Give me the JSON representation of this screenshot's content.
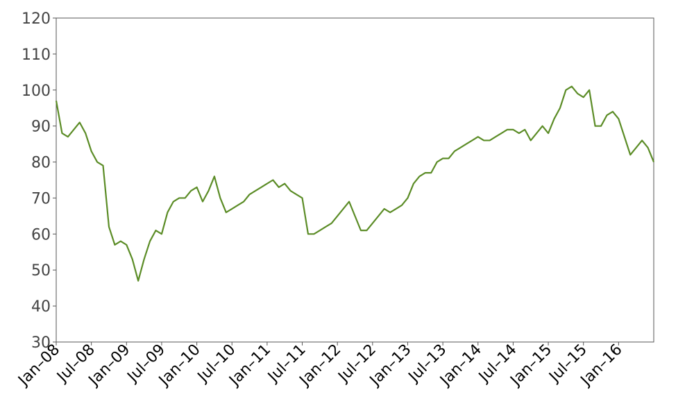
{
  "chart_data": {
    "type": "line",
    "x": [
      "2008-01",
      "2008-02",
      "2008-03",
      "2008-04",
      "2008-05",
      "2008-06",
      "2008-07",
      "2008-08",
      "2008-09",
      "2008-10",
      "2008-11",
      "2008-12",
      "2009-01",
      "2009-02",
      "2009-03",
      "2009-04",
      "2009-05",
      "2009-06",
      "2009-07",
      "2009-08",
      "2009-09",
      "2009-10",
      "2009-11",
      "2009-12",
      "2010-01",
      "2010-02",
      "2010-03",
      "2010-04",
      "2010-05",
      "2010-06",
      "2010-07",
      "2010-08",
      "2010-09",
      "2010-10",
      "2010-11",
      "2010-12",
      "2011-01",
      "2011-02",
      "2011-03",
      "2011-04",
      "2011-05",
      "2011-06",
      "2011-07",
      "2011-08",
      "2011-09",
      "2011-10",
      "2011-11",
      "2011-12",
      "2012-01",
      "2012-02",
      "2012-03",
      "2012-04",
      "2012-05",
      "2012-06",
      "2012-07",
      "2012-08",
      "2012-09",
      "2012-10",
      "2012-11",
      "2012-12",
      "2013-01",
      "2013-02",
      "2013-03",
      "2013-04",
      "2013-05",
      "2013-06",
      "2013-07",
      "2013-08",
      "2013-09",
      "2013-10",
      "2013-11",
      "2013-12",
      "2014-01",
      "2014-02",
      "2014-03",
      "2014-04",
      "2014-05",
      "2014-06",
      "2014-07",
      "2014-08",
      "2014-09",
      "2014-10",
      "2014-11",
      "2014-12",
      "2015-01",
      "2015-02",
      "2015-03",
      "2015-04",
      "2015-05",
      "2015-06",
      "2015-07",
      "2015-08",
      "2015-09",
      "2015-10",
      "2015-11",
      "2015-12",
      "2016-01",
      "2016-02",
      "2016-03",
      "2016-04",
      "2016-05",
      "2016-06",
      "2016-07"
    ],
    "series": [
      {
        "color": "#5b8c26",
        "values": [
          97,
          88,
          87,
          89,
          91,
          88,
          83,
          80,
          79,
          62,
          57,
          58,
          57,
          53,
          47,
          53,
          58,
          61,
          60,
          66,
          69,
          70,
          70,
          72,
          73,
          69,
          72,
          76,
          70,
          66,
          67,
          68,
          69,
          71,
          72,
          73,
          74,
          75,
          73,
          74,
          72,
          71,
          70,
          60,
          60,
          61,
          62,
          63,
          65,
          67,
          69,
          65,
          61,
          61,
          63,
          65,
          67,
          66,
          67,
          68,
          70,
          74,
          76,
          77,
          77,
          80,
          81,
          81,
          83,
          84,
          85,
          86,
          87,
          86,
          86,
          87,
          88,
          89,
          89,
          88,
          89,
          86,
          88,
          90,
          88,
          92,
          95,
          100,
          101,
          99,
          98,
          100,
          90,
          90,
          93,
          94,
          92,
          87,
          82,
          84,
          86,
          84,
          80
        ]
      }
    ],
    "xlim": [
      "2008-01",
      "2016-07"
    ],
    "xticks": [
      {
        "value": "2008-01",
        "label": "Jan–08"
      },
      {
        "value": "2008-07",
        "label": "Jul–08"
      },
      {
        "value": "2009-01",
        "label": "Jan–09"
      },
      {
        "value": "2009-07",
        "label": "Jul–09"
      },
      {
        "value": "2010-01",
        "label": "Jan–10"
      },
      {
        "value": "2010-07",
        "label": "Jul–10"
      },
      {
        "value": "2011-01",
        "label": "Jan–11"
      },
      {
        "value": "2011-07",
        "label": "Jul–11"
      },
      {
        "value": "2012-01",
        "label": "Jan–12"
      },
      {
        "value": "2012-07",
        "label": "Jul–12"
      },
      {
        "value": "2013-01",
        "label": "Jan–13"
      },
      {
        "value": "2013-07",
        "label": "Jul–13"
      },
      {
        "value": "2014-01",
        "label": "Jan–14"
      },
      {
        "value": "2014-07",
        "label": "Jul–14"
      },
      {
        "value": "2015-01",
        "label": "Jan–15"
      },
      {
        "value": "2015-07",
        "label": "Jul–15"
      },
      {
        "value": "2016-01",
        "label": "Jan–16"
      }
    ],
    "ylim": [
      30,
      120
    ],
    "yticks": [
      30,
      40,
      50,
      60,
      70,
      80,
      90,
      100,
      110,
      120
    ]
  }
}
